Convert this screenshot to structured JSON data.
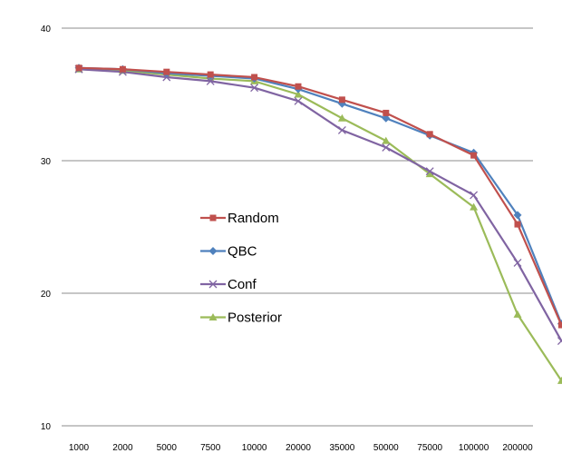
{
  "chart_data": {
    "type": "line",
    "categories": [
      "1000",
      "2000",
      "5000",
      "7500",
      "10000",
      "20000",
      "35000",
      "50000",
      "75000",
      "100000",
      "200000",
      ""
    ],
    "ylim": [
      10,
      40
    ],
    "yticks": [
      "10",
      "20",
      "30",
      "40"
    ],
    "grid": "horizontal",
    "legend_position": "center-left",
    "series": [
      {
        "name": "Random",
        "color": "#c0504d",
        "marker": "square",
        "values": [
          37.0,
          36.9,
          36.7,
          36.5,
          36.3,
          35.6,
          34.6,
          33.6,
          32.0,
          30.4,
          25.2,
          17.6
        ]
      },
      {
        "name": "QBC",
        "color": "#4f81bd",
        "marker": "diamond",
        "values": [
          37.0,
          36.9,
          36.6,
          36.4,
          36.2,
          35.4,
          34.3,
          33.2,
          31.9,
          30.6,
          25.9,
          17.7
        ]
      },
      {
        "name": "Conf",
        "color": "#8064a2",
        "marker": "x",
        "values": [
          36.9,
          36.7,
          36.3,
          36.0,
          35.5,
          34.5,
          32.3,
          31.0,
          29.2,
          27.4,
          22.3,
          16.4
        ]
      },
      {
        "name": "Posterior",
        "color": "#9bbb59",
        "marker": "triangle",
        "values": [
          36.9,
          36.8,
          36.5,
          36.2,
          36.0,
          35.0,
          33.2,
          31.5,
          29.0,
          26.5,
          18.4,
          13.4
        ]
      }
    ]
  }
}
